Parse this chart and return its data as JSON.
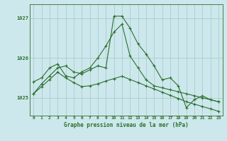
{
  "bg_color": "#cce8ec",
  "grid_color": "#aacccc",
  "line_color": "#2d6e2d",
  "title": "Graphe pression niveau de la mer (hPa)",
  "xlim": [
    -0.5,
    23.5
  ],
  "ylim": [
    1024.55,
    1027.35
  ],
  "yticks": [
    1025,
    1026,
    1027
  ],
  "xtick_labels": [
    "0",
    "1",
    "2",
    "3",
    "4",
    "5",
    "6",
    "7",
    "8",
    "9",
    "10",
    "11",
    "12",
    "13",
    "14",
    "15",
    "16",
    "17",
    "18",
    "19",
    "20",
    "21",
    "22",
    "23"
  ],
  "series1": [
    1025.1,
    1025.35,
    1025.55,
    1025.75,
    1025.8,
    1025.65,
    1025.6,
    1025.7,
    1025.8,
    1025.75,
    1027.05,
    1027.05,
    1026.75,
    1026.35,
    1026.1,
    1025.8,
    1025.45,
    1025.5,
    1025.3,
    1024.75,
    1024.95,
    1025.05,
    1024.95,
    1024.9
  ],
  "series2": [
    1025.4,
    1025.5,
    1025.75,
    1025.85,
    1025.55,
    1025.5,
    1025.65,
    1025.75,
    1026.0,
    1026.3,
    1026.65,
    1026.85,
    1026.05,
    1025.75,
    1025.45,
    1025.3,
    1025.25,
    1025.2,
    1025.15,
    1025.1,
    1025.05,
    1025.0,
    1024.95,
    1024.9
  ],
  "series3": [
    1025.1,
    1025.28,
    1025.46,
    1025.64,
    1025.5,
    1025.38,
    1025.28,
    1025.3,
    1025.35,
    1025.42,
    1025.48,
    1025.54,
    1025.46,
    1025.38,
    1025.3,
    1025.22,
    1025.14,
    1025.06,
    1024.98,
    1024.9,
    1024.84,
    1024.78,
    1024.72,
    1024.66
  ],
  "title_fontsize": 5.5,
  "tick_fontsize": 4.5,
  "ytick_fontsize": 5.0
}
